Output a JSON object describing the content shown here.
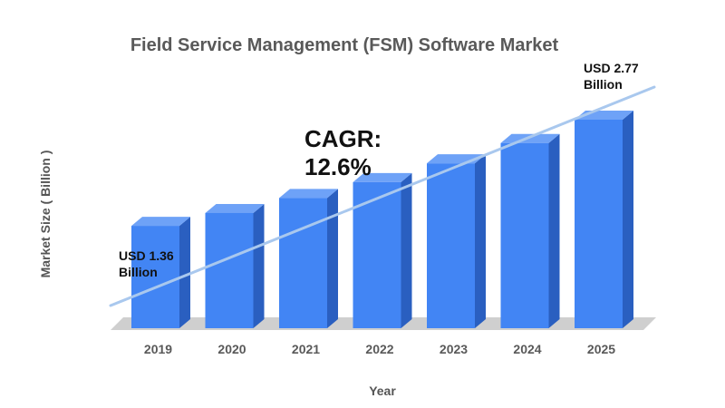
{
  "chart_data": {
    "type": "bar",
    "title": "Field Service Management (FSM) Software Market",
    "xlabel": "Year",
    "ylabel": "Market Size ( Billion )",
    "categories": [
      "2019",
      "2020",
      "2021",
      "2022",
      "2023",
      "2024",
      "2025"
    ],
    "values": [
      1.36,
      1.53,
      1.73,
      1.94,
      2.19,
      2.46,
      2.77
    ],
    "ylim": [
      0,
      2.77
    ],
    "grid": false,
    "legend": "none",
    "colors": {
      "bar_front": "#4285f4",
      "bar_side": "#2a5fc0",
      "bar_top": "#6ea2f7",
      "floor": "#cfcfcf",
      "trend_line": "#a9c8ee"
    },
    "annotations": {
      "start_line1": "USD 1.36",
      "start_line2": "Billion",
      "end_line1": "USD 2.77",
      "end_line2": "Billion",
      "cagr_line1": "CAGR:",
      "cagr_line2": "12.6%"
    }
  }
}
